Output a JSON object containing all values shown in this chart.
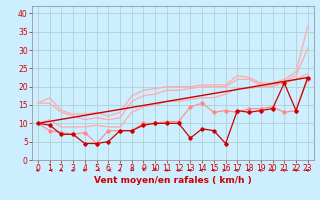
{
  "bg_color": "#cceeff",
  "grid_color": "#aacccc",
  "xlabel": "Vent moyen/en rafales ( km/h )",
  "x_ticks": [
    0,
    1,
    2,
    3,
    4,
    5,
    6,
    7,
    8,
    9,
    10,
    11,
    12,
    13,
    14,
    15,
    16,
    17,
    18,
    19,
    20,
    21,
    22,
    23
  ],
  "ylim": [
    0,
    42
  ],
  "y_ticks": [
    0,
    5,
    10,
    15,
    20,
    25,
    30,
    35,
    40
  ],
  "lines": [
    {
      "color": "#ffaaaa",
      "lw": 0.9,
      "marker": null,
      "x": [
        0,
        1,
        2,
        3,
        4,
        5,
        6,
        7,
        8,
        9,
        10,
        11,
        12,
        13,
        14,
        15,
        16,
        17,
        18,
        19,
        20,
        21,
        22,
        23
      ],
      "y": [
        15.5,
        17,
        13.5,
        12.5,
        12.5,
        13,
        12,
        13,
        17.5,
        19,
        19.5,
        20,
        20,
        20,
        20.5,
        20.5,
        20.5,
        23,
        22.5,
        21,
        21,
        22,
        24,
        36.5
      ]
    },
    {
      "color": "#ffaaaa",
      "lw": 0.9,
      "marker": null,
      "x": [
        0,
        1,
        2,
        3,
        4,
        5,
        6,
        7,
        8,
        9,
        10,
        11,
        12,
        13,
        14,
        15,
        16,
        17,
        18,
        19,
        20,
        21,
        22,
        23
      ],
      "y": [
        15.5,
        15.5,
        13,
        12,
        11,
        11.5,
        11,
        11.5,
        16,
        17.5,
        18,
        19,
        19,
        19.5,
        20,
        20,
        20,
        22,
        22,
        20.5,
        20.5,
        21.5,
        23,
        30.5
      ]
    },
    {
      "color": "#ffaaaa",
      "lw": 0.9,
      "marker": null,
      "x": [
        0,
        1,
        2,
        3,
        4,
        5,
        6,
        7,
        8,
        9,
        10,
        11,
        12,
        13,
        14,
        15,
        16,
        17,
        18,
        19,
        20,
        21,
        22,
        23
      ],
      "y": [
        10,
        11,
        9,
        9,
        9,
        9.5,
        9,
        9,
        13,
        14.5,
        15,
        16,
        16,
        16.5,
        17,
        17,
        18,
        19.5,
        19.5,
        20,
        20,
        21,
        22,
        23.5
      ]
    },
    {
      "color": "#ff8888",
      "lw": 0.8,
      "marker": "D",
      "markersize": 1.8,
      "x": [
        0,
        1,
        2,
        3,
        4,
        5,
        6,
        7,
        8,
        9,
        10,
        11,
        12,
        13,
        14,
        15,
        16,
        17,
        18,
        19,
        20,
        21,
        22,
        23
      ],
      "y": [
        10,
        8,
        7.5,
        7,
        7.5,
        4.5,
        8,
        8,
        8,
        10,
        10,
        10.5,
        10.5,
        14.5,
        15.5,
        13,
        13.5,
        13,
        14,
        14,
        14.5,
        13,
        13.5,
        22
      ]
    },
    {
      "color": "#cc0000",
      "lw": 0.9,
      "marker": "D",
      "markersize": 1.8,
      "x": [
        0,
        1,
        2,
        3,
        4,
        5,
        6,
        7,
        8,
        9,
        10,
        11,
        12,
        13,
        14,
        15,
        16,
        17,
        18,
        19,
        20,
        21,
        22,
        23
      ],
      "y": [
        10,
        9.5,
        7,
        7,
        4.5,
        4.5,
        5,
        8,
        8,
        9.5,
        10,
        10,
        10,
        6,
        8.5,
        8,
        4.5,
        13.5,
        13,
        13.5,
        14,
        21,
        13.5,
        22.5
      ]
    },
    {
      "color": "#cc0000",
      "lw": 1.0,
      "marker": null,
      "x": [
        0,
        23
      ],
      "y": [
        10,
        22.5
      ]
    }
  ],
  "tick_fontsize": 5.5,
  "xlabel_fontsize": 6.5
}
